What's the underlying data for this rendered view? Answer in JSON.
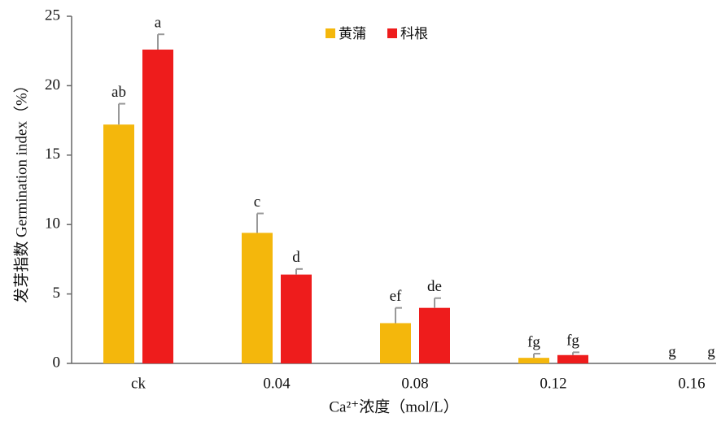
{
  "chart_data": {
    "type": "bar",
    "categories": [
      "ck",
      "0.04",
      "0.08",
      "0.12",
      "0.16"
    ],
    "series": [
      {
        "name": "黄蒲",
        "color": "#f4b70c",
        "values": [
          17.2,
          9.4,
          2.9,
          0.4,
          0
        ],
        "errors": [
          1.5,
          1.4,
          1.1,
          0.3,
          0
        ],
        "letters": [
          "ab",
          "c",
          "ef",
          "fg",
          "g"
        ]
      },
      {
        "name": "科根",
        "color": "#ee1c1c",
        "values": [
          22.6,
          6.4,
          4.0,
          0.6,
          0
        ],
        "errors": [
          1.1,
          0.4,
          0.7,
          0.2,
          0
        ],
        "letters": [
          "a",
          "d",
          "de",
          "fg",
          "g"
        ]
      }
    ],
    "ylim": [
      0,
      25
    ],
    "yticks": [
      0,
      5,
      10,
      15,
      20,
      25
    ],
    "y_label": "发芽指数 Germination index（%）",
    "x_label": "Ca²⁺浓度（mol/L）",
    "grid": false
  }
}
